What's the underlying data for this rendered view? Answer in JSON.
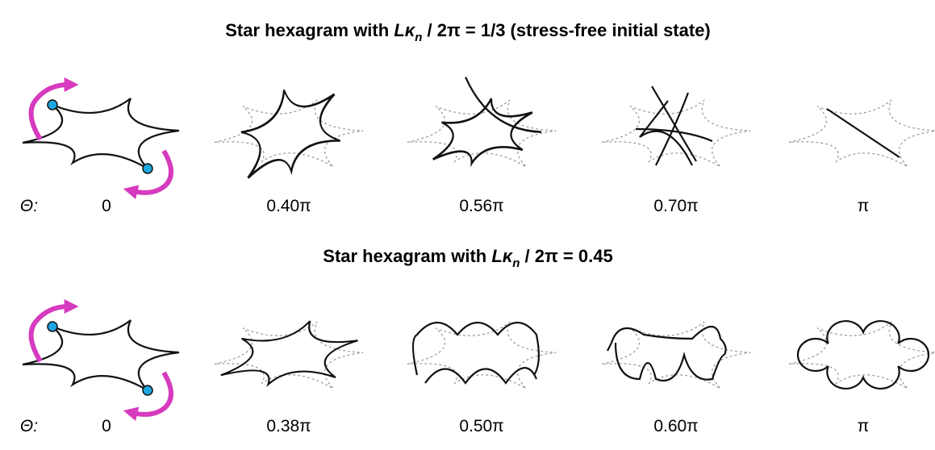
{
  "rows": [
    {
      "title": {
        "prefix": "Star hexagram with ",
        "variable": "Lκ",
        "subscript": "n",
        "suffix": " / 2π = 1/3 (stress-free initial state)"
      },
      "theta_label": "Θ:",
      "angles": [
        "0",
        "0.40π",
        "0.56π",
        "0.70π",
        "π"
      ]
    },
    {
      "title": {
        "prefix": "Star hexagram with ",
        "variable": "Lκ",
        "subscript": "n",
        "suffix": " / 2π = 0.45"
      },
      "theta_label": "Θ:",
      "angles": [
        "0",
        "0.38π",
        "0.50π",
        "0.60π",
        "π"
      ]
    }
  ]
}
